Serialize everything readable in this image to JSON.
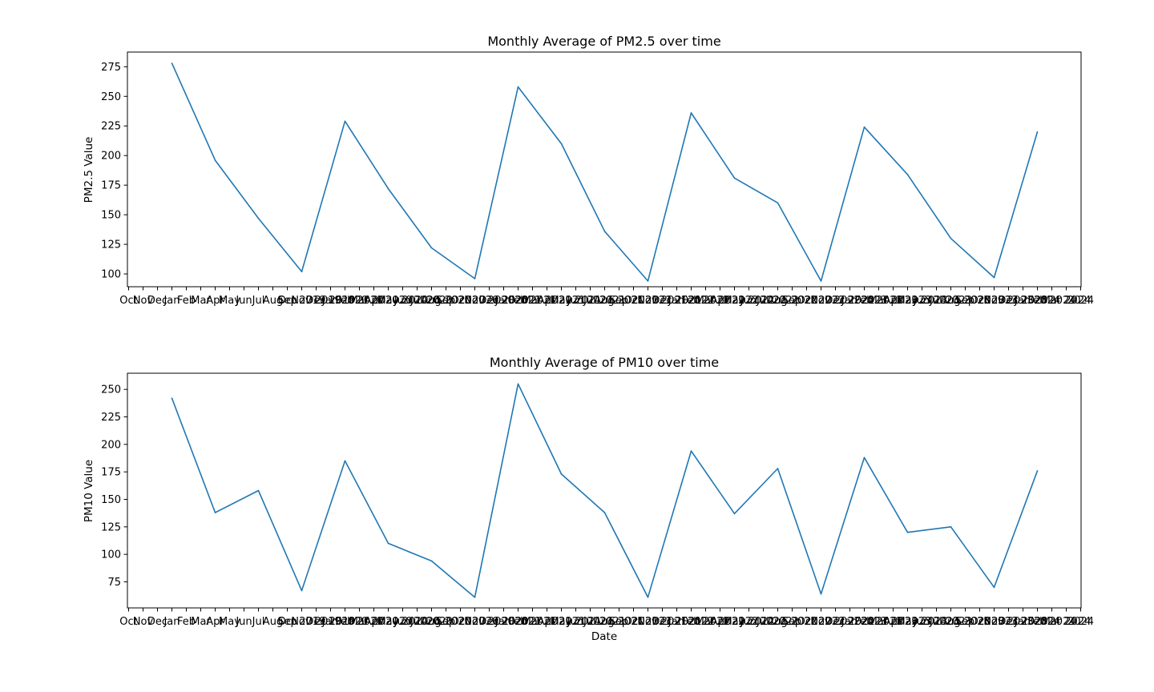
{
  "figure": {
    "line_color": "#1f77b4",
    "frame_color": "#000000",
    "background": "#ffffff"
  },
  "chart_data": [
    {
      "type": "line",
      "title": "Monthly Average of PM2.5 over time",
      "xlabel": "",
      "ylabel": "PM2.5 Value",
      "series": [
        {
          "name": "PM2.5",
          "values": [
            278,
            196,
            147,
            102,
            229,
            172,
            122,
            96,
            258,
            210,
            136,
            94,
            236,
            181,
            160,
            94,
            224,
            184,
            130,
            97,
            220
          ]
        }
      ],
      "x_month_index": [
        3,
        6,
        9,
        12,
        15,
        18,
        21,
        24,
        27,
        30,
        33,
        36,
        39,
        42,
        45,
        48,
        51,
        54,
        57,
        60,
        63
      ],
      "x_range": [
        0,
        66
      ],
      "ylim": [
        89.2,
        287.4
      ],
      "yticks": [
        100,
        125,
        150,
        175,
        200,
        225,
        250,
        275
      ],
      "grid": false,
      "x_tick_labels": [
        "Oct",
        "Nov",
        "Dec",
        "Jan",
        "Feb",
        "Mar",
        "Apr",
        "May",
        "Jun",
        "Jul",
        "Aug",
        "Sep",
        "Oct 2019",
        "Nov 2019",
        "Dec 2019",
        "Jan 2020",
        "Feb 2020",
        "Mar 2020",
        "Apr 2020",
        "May 2020",
        "Jun 2020",
        "Jul 2020",
        "Aug 2020",
        "Sep 2020",
        "Oct 2020",
        "Nov 2020",
        "Dec 2020",
        "Jan 2021",
        "Feb 2021",
        "Mar 2021",
        "Apr 2021",
        "May 2021",
        "Jun 2021",
        "Jul 2021",
        "Aug 2021",
        "Sep 2021",
        "Oct 2021",
        "Nov 2021",
        "Dec 2021",
        "Jan 2022",
        "Feb 2022",
        "Mar 2022",
        "Apr 2022",
        "May 2022",
        "Jun 2022",
        "Jul 2022",
        "Aug 2022",
        "Sep 2022",
        "Oct 2022",
        "Nov 2022",
        "Dec 2022",
        "Jan 2023",
        "Feb 2023",
        "Mar 2023",
        "Apr 2023",
        "May 2023",
        "Jun 2023",
        "Jul 2023",
        "Aug 2023",
        "Sep 2023",
        "Oct 2023",
        "Nov 2023",
        "Dec 2023",
        "Jan 2024",
        "Feb 2024",
        "Mar 2024",
        "2024"
      ]
    },
    {
      "type": "line",
      "title": "Monthly Average of PM10 over time",
      "xlabel": "Date",
      "ylabel": "PM10 Value",
      "series": [
        {
          "name": "PM10",
          "values": [
            242,
            138,
            158,
            67,
            185,
            110,
            94,
            61,
            255,
            173,
            138,
            61,
            194,
            137,
            178,
            64,
            188,
            120,
            125,
            70,
            176
          ]
        }
      ],
      "x_month_index": [
        3,
        6,
        9,
        12,
        15,
        18,
        21,
        24,
        27,
        30,
        33,
        36,
        39,
        42,
        45,
        48,
        51,
        54,
        57,
        60,
        63
      ],
      "x_range": [
        0,
        66
      ],
      "ylim": [
        51.3,
        264.7
      ],
      "yticks": [
        75,
        100,
        125,
        150,
        175,
        200,
        225,
        250
      ],
      "grid": false,
      "x_tick_labels": [
        "Oct",
        "Nov",
        "Dec",
        "Jan",
        "Feb",
        "Mar",
        "Apr",
        "May",
        "Jun",
        "Jul",
        "Aug",
        "Sep",
        "Oct 2019",
        "Nov 2019",
        "Dec 2019",
        "Jan 2020",
        "Feb 2020",
        "Mar 2020",
        "Apr 2020",
        "May 2020",
        "Jun 2020",
        "Jul 2020",
        "Aug 2020",
        "Sep 2020",
        "Oct 2020",
        "Nov 2020",
        "Dec 2020",
        "Jan 2021",
        "Feb 2021",
        "Mar 2021",
        "Apr 2021",
        "May 2021",
        "Jun 2021",
        "Jul 2021",
        "Aug 2021",
        "Sep 2021",
        "Oct 2021",
        "Nov 2021",
        "Dec 2021",
        "Jan 2022",
        "Feb 2022",
        "Mar 2022",
        "Apr 2022",
        "May 2022",
        "Jun 2022",
        "Jul 2022",
        "Aug 2022",
        "Sep 2022",
        "Oct 2022",
        "Nov 2022",
        "Dec 2022",
        "Jan 2023",
        "Feb 2023",
        "Mar 2023",
        "Apr 2023",
        "May 2023",
        "Jun 2023",
        "Jul 2023",
        "Aug 2023",
        "Sep 2023",
        "Oct 2023",
        "Nov 2023",
        "Dec 2023",
        "Jan 2024",
        "Feb 2024",
        "Mar 2024",
        "2024"
      ]
    }
  ]
}
